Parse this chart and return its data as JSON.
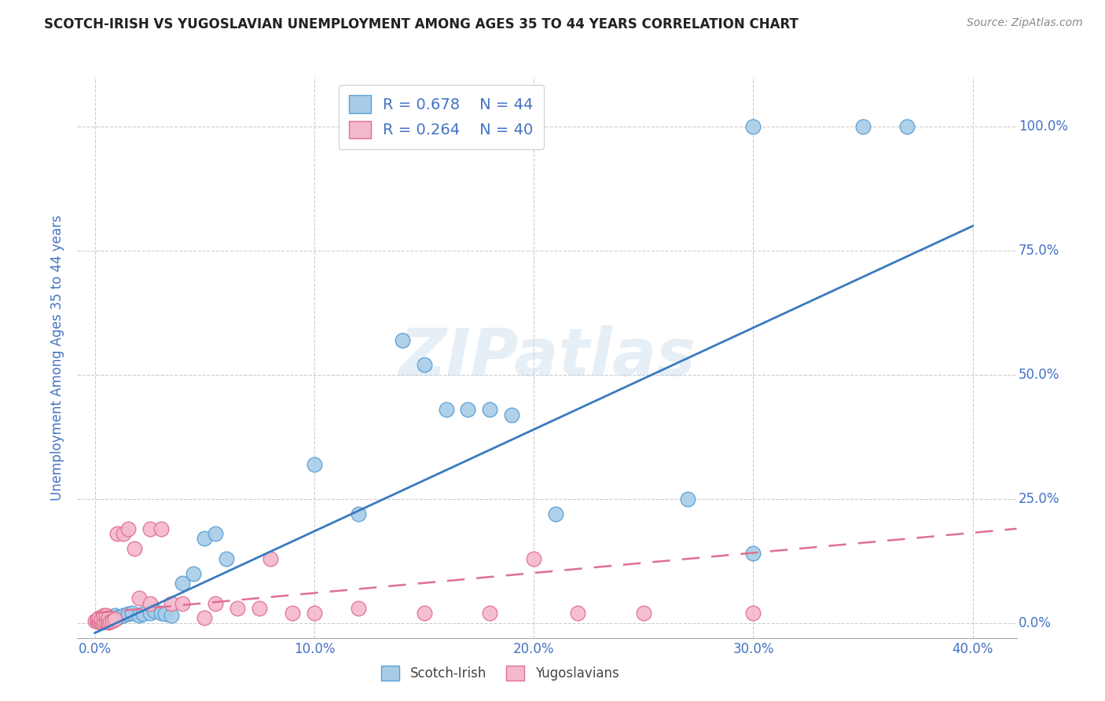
{
  "title": "SCOTCH-IRISH VS YUGOSLAVIAN UNEMPLOYMENT AMONG AGES 35 TO 44 YEARS CORRELATION CHART",
  "source": "Source: ZipAtlas.com",
  "ylabel": "Unemployment Among Ages 35 to 44 years",
  "xlabel_tick_vals": [
    0.0,
    0.1,
    0.2,
    0.3,
    0.4
  ],
  "xlabel_ticks": [
    "0.0%",
    "10.0%",
    "20.0%",
    "30.0%",
    "40.0%"
  ],
  "ylabel_tick_vals": [
    0.0,
    0.25,
    0.5,
    0.75,
    1.0
  ],
  "ylabel_ticks": [
    "0.0%",
    "25.0%",
    "50.0%",
    "75.0%",
    "100.0%"
  ],
  "xlim": [
    -0.008,
    0.42
  ],
  "ylim": [
    -0.03,
    1.1
  ],
  "scotch_irish_color": "#a8cce8",
  "scotch_irish_edge": "#5a9fd4",
  "yugoslavian_color": "#f4b8cc",
  "yugoslavian_edge": "#e07090",
  "scotch_irish_R": "0.678",
  "scotch_irish_N": "44",
  "yugoslavian_R": "0.264",
  "yugoslavian_N": "40",
  "scotch_irish_scatter": [
    [
      0.001,
      0.005
    ],
    [
      0.002,
      0.003
    ],
    [
      0.002,
      0.008
    ],
    [
      0.003,
      0.002
    ],
    [
      0.003,
      0.006
    ],
    [
      0.004,
      0.004
    ],
    [
      0.004,
      0.01
    ],
    [
      0.005,
      0.003
    ],
    [
      0.005,
      0.008
    ],
    [
      0.006,
      0.005
    ],
    [
      0.007,
      0.01
    ],
    [
      0.008,
      0.008
    ],
    [
      0.009,
      0.015
    ],
    [
      0.01,
      0.01
    ],
    [
      0.011,
      0.012
    ],
    [
      0.013,
      0.015
    ],
    [
      0.015,
      0.018
    ],
    [
      0.017,
      0.02
    ],
    [
      0.02,
      0.015
    ],
    [
      0.022,
      0.018
    ],
    [
      0.025,
      0.02
    ],
    [
      0.027,
      0.025
    ],
    [
      0.03,
      0.02
    ],
    [
      0.032,
      0.018
    ],
    [
      0.035,
      0.015
    ],
    [
      0.04,
      0.08
    ],
    [
      0.045,
      0.1
    ],
    [
      0.05,
      0.17
    ],
    [
      0.055,
      0.18
    ],
    [
      0.06,
      0.13
    ],
    [
      0.1,
      0.32
    ],
    [
      0.12,
      0.22
    ],
    [
      0.14,
      0.57
    ],
    [
      0.15,
      0.52
    ],
    [
      0.16,
      0.43
    ],
    [
      0.17,
      0.43
    ],
    [
      0.18,
      0.43
    ],
    [
      0.19,
      0.42
    ],
    [
      0.21,
      0.22
    ],
    [
      0.27,
      0.25
    ],
    [
      0.3,
      0.14
    ],
    [
      0.3,
      1.0
    ],
    [
      0.35,
      1.0
    ],
    [
      0.37,
      1.0
    ]
  ],
  "yugoslavian_scatter": [
    [
      0.0,
      0.005
    ],
    [
      0.001,
      0.003
    ],
    [
      0.001,
      0.008
    ],
    [
      0.002,
      0.005
    ],
    [
      0.002,
      0.01
    ],
    [
      0.003,
      0.003
    ],
    [
      0.003,
      0.008
    ],
    [
      0.004,
      0.005
    ],
    [
      0.004,
      0.015
    ],
    [
      0.005,
      0.005
    ],
    [
      0.005,
      0.015
    ],
    [
      0.006,
      0.002
    ],
    [
      0.006,
      0.01
    ],
    [
      0.007,
      0.003
    ],
    [
      0.008,
      0.005
    ],
    [
      0.009,
      0.008
    ],
    [
      0.01,
      0.18
    ],
    [
      0.013,
      0.18
    ],
    [
      0.015,
      0.19
    ],
    [
      0.018,
      0.15
    ],
    [
      0.02,
      0.05
    ],
    [
      0.025,
      0.04
    ],
    [
      0.025,
      0.19
    ],
    [
      0.03,
      0.19
    ],
    [
      0.035,
      0.04
    ],
    [
      0.04,
      0.04
    ],
    [
      0.05,
      0.01
    ],
    [
      0.055,
      0.04
    ],
    [
      0.065,
      0.03
    ],
    [
      0.075,
      0.03
    ],
    [
      0.08,
      0.13
    ],
    [
      0.09,
      0.02
    ],
    [
      0.1,
      0.02
    ],
    [
      0.12,
      0.03
    ],
    [
      0.15,
      0.02
    ],
    [
      0.18,
      0.02
    ],
    [
      0.2,
      0.13
    ],
    [
      0.22,
      0.02
    ],
    [
      0.25,
      0.02
    ],
    [
      0.3,
      0.02
    ]
  ],
  "si_line_x": [
    0.0,
    0.4
  ],
  "si_line_y": [
    -0.02,
    0.8
  ],
  "yu_line_x": [
    0.0,
    0.42
  ],
  "yu_line_y": [
    0.02,
    0.19
  ],
  "watermark_text": "ZIPatlas",
  "bg_color": "#ffffff",
  "grid_color": "#cccccc",
  "axis_color": "#4472c4",
  "title_color": "#222222",
  "source_color": "#888888",
  "legend_text_color": "#4472c4"
}
